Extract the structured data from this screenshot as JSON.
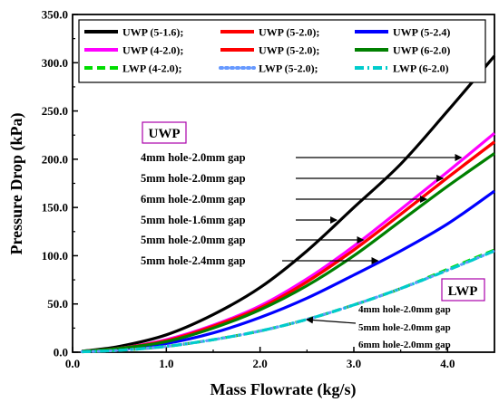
{
  "chart_data": {
    "type": "line",
    "xlabel": "Mass Flowrate (kg/s)",
    "ylabel": "Pressure Drop (kPa)",
    "xlim": [
      0,
      4.5
    ],
    "ylim": [
      0,
      350
    ],
    "x_ticks": [
      "0.0",
      "1.0",
      "2.0",
      "3.0",
      "4.0"
    ],
    "y_ticks": [
      "0.0",
      "50.0",
      "100.0",
      "150.0",
      "200.0",
      "250.0",
      "300.0",
      "350.0"
    ],
    "grid": false,
    "legend_placement": "top",
    "series": [
      {
        "name": "UWP (5-1.6)",
        "color": "#000000",
        "style": "solid",
        "x": [
          0.1,
          0.5,
          1.0,
          1.5,
          2.0,
          2.5,
          3.0,
          3.5,
          4.0,
          4.5
        ],
        "y": [
          1,
          6,
          18,
          39,
          67,
          105,
          150,
          195,
          250,
          307
        ]
      },
      {
        "name": "UWP (5-2.0)",
        "color": "#ff0000",
        "style": "solid",
        "x": [
          0.1,
          0.5,
          1.0,
          1.5,
          2.0,
          2.5,
          3.0,
          3.5,
          4.0,
          4.5
        ],
        "y": [
          1,
          4,
          12,
          27,
          46,
          73,
          106,
          143,
          181,
          218
        ]
      },
      {
        "name": "UWP (5-2.4)",
        "color": "#0000ff",
        "style": "solid",
        "x": [
          0.1,
          0.5,
          1.0,
          1.5,
          2.0,
          2.5,
          3.0,
          3.5,
          4.0,
          4.5
        ],
        "y": [
          1,
          3,
          9,
          20,
          36,
          56,
          80,
          105,
          133,
          167
        ]
      },
      {
        "name": "UWP (4-2.0)",
        "color": "#ff00ff",
        "style": "solid",
        "x": [
          0.1,
          0.5,
          1.0,
          1.5,
          2.0,
          2.5,
          3.0,
          3.5,
          4.0,
          4.5
        ],
        "y": [
          1,
          4,
          13,
          28,
          48,
          76,
          110,
          148,
          187,
          227
        ]
      },
      {
        "name": "UWP (5-2.0)",
        "color": "#ff0000",
        "style": "solid",
        "x": [
          0.1,
          0.5,
          1.0,
          1.5,
          2.0,
          2.5,
          3.0,
          3.5,
          4.0,
          4.5
        ],
        "y": [
          1,
          4,
          12,
          27,
          46,
          73,
          106,
          143,
          181,
          218
        ]
      },
      {
        "name": "UWP (6-2.0)",
        "color": "#008000",
        "style": "solid",
        "x": [
          0.1,
          0.5,
          1.0,
          1.5,
          2.0,
          2.5,
          3.0,
          3.5,
          4.0,
          4.5
        ],
        "y": [
          1,
          4,
          11,
          25,
          44,
          69,
          100,
          136,
          172,
          206
        ]
      },
      {
        "name": "LWP (4-2.0)",
        "color": "#00dd00",
        "style": "dash",
        "x": [
          0.1,
          0.5,
          1.0,
          1.5,
          2.0,
          2.5,
          3.0,
          3.5,
          4.0,
          4.5
        ],
        "y": [
          0.5,
          2,
          6,
          13,
          22,
          34,
          49,
          66,
          86,
          106
        ]
      },
      {
        "name": "LWP (5-2.0)",
        "color": "#6699ff",
        "style": "dot",
        "x": [
          0.1,
          0.5,
          1.0,
          1.5,
          2.0,
          2.5,
          3.0,
          3.5,
          4.0,
          4.5
        ],
        "y": [
          0.5,
          2,
          6,
          13,
          22,
          34,
          49,
          66,
          85,
          105
        ]
      },
      {
        "name": "LWP (6-2.0)",
        "color": "#00cccc",
        "style": "dashdot",
        "x": [
          0.1,
          0.5,
          1.0,
          1.5,
          2.0,
          2.5,
          3.0,
          3.5,
          4.0,
          4.5
        ],
        "y": [
          0.5,
          2,
          6,
          13,
          22,
          34,
          49,
          66,
          85,
          105
        ]
      }
    ],
    "legend": [
      "UWP (5-1.6);",
      "UWP (5-2.0);",
      "UWP (5-2.4)",
      "UWP (4-2.0);",
      "UWP (5-2.0);",
      "UWP (6-2.0)",
      "LWP (4-2.0);",
      "LWP (5-2.0);",
      "LWP (6-2.0)"
    ],
    "annotations": {
      "uwp_box": "UWP",
      "lwp_box": "LWP",
      "uwp_labels": [
        {
          "text": "4mm hole-2.0mm gap",
          "target_series": "UWP (4-2.0)"
        },
        {
          "text": "5mm hole-2.0mm gap",
          "target_series": "UWP (5-2.0)"
        },
        {
          "text": "6mm hole-2.0mm gap",
          "target_series": "UWP (6-2.0)"
        },
        {
          "text": "5mm hole-1.6mm gap",
          "target_series": "UWP (5-1.6)"
        },
        {
          "text": "5mm hole-2.0mm gap",
          "target_series": "UWP (5-2.0)"
        },
        {
          "text": "5mm hole-2.4mm gap",
          "target_series": "UWP (5-2.4)"
        }
      ],
      "lwp_labels": [
        "4mm hole-2.0mm gap",
        "5mm hole-2.0mm gap",
        "6mm hole-2.0mm gap"
      ]
    }
  }
}
